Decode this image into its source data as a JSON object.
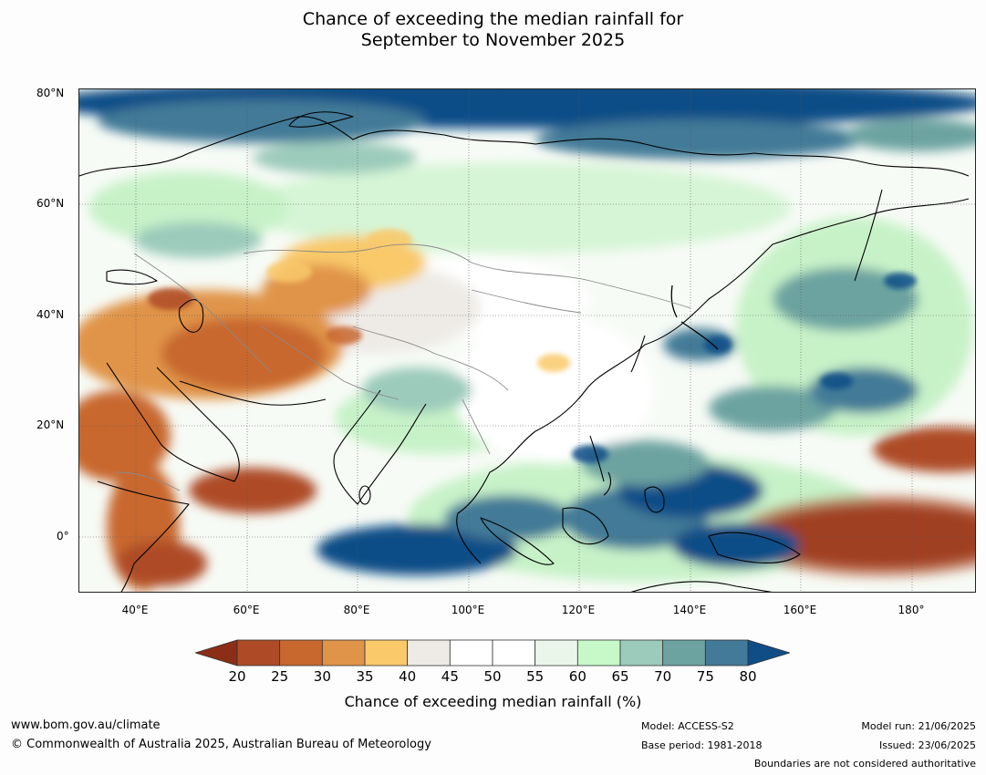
{
  "title": {
    "line1": "Chance of exceeding the median rainfall for",
    "line2": "September to November 2025"
  },
  "lat_labels": [
    "80°N",
    "60°N",
    "40°N",
    "20°N",
    "0°"
  ],
  "lon_labels": [
    "40°E",
    "60°E",
    "80°E",
    "100°E",
    "120°E",
    "140°E",
    "160°E",
    "180°"
  ],
  "legend": {
    "title": "Chance of exceeding median rainfall (%)",
    "ticks": [
      "20",
      "25",
      "30",
      "35",
      "40",
      "45",
      "50",
      "55",
      "60",
      "65",
      "70",
      "75",
      "80"
    ],
    "colors": [
      "#8c2d18",
      "#ae4b26",
      "#c8682f",
      "#e0944a",
      "#f9c96a",
      "#eeebe7",
      "#ffffff",
      "#ffffff",
      "#ebf6ea",
      "#c7f8c8",
      "#9ccbbb",
      "#6ca3a0",
      "#437a97",
      "#104d87"
    ]
  },
  "footer": {
    "website": "www.bom.gov.au/climate",
    "copyright": "© Commonwealth of Australia 2025, Australian Bureau of Meteorology",
    "model": "Model: ACCESS-S2",
    "base_period": "Base period: 1981-2018",
    "model_run": "Model run: 21/06/2025",
    "issued": "Issued: 23/06/2025",
    "disclaimer": "Boundaries are not considered authoritative"
  }
}
